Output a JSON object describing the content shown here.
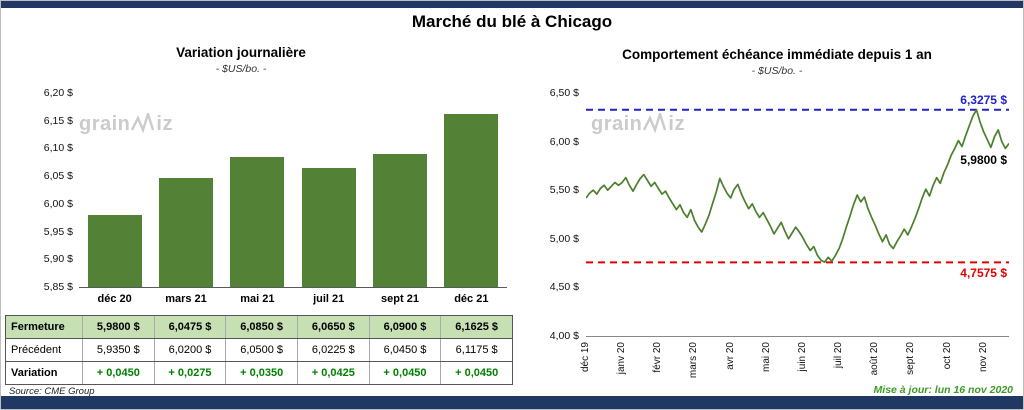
{
  "page": {
    "title": "Marché du blé à Chicago",
    "source": "Source: CME Group",
    "updated": "Mise à jour: lun 16 nov 2020"
  },
  "watermark": {
    "pre": "grain",
    "post": "iz"
  },
  "colors": {
    "navy": "#1F3864",
    "bar_green": "#538135",
    "row_green": "#C6E0B4",
    "variation_green": "#008000",
    "line_green": "#4A7F2C",
    "ref_blue": "#2222CC",
    "ref_red": "#E00000",
    "updated_green": "#3C9B28",
    "watermark_gray": "#CBCBCB"
  },
  "chart_data": [
    {
      "type": "bar",
      "title": "Variation journalière",
      "subtitle": "- $US/bo. -",
      "categories": [
        "déc 20",
        "mars 21",
        "mai 21",
        "juil 21",
        "sept 21",
        "déc 21"
      ],
      "values": [
        5.98,
        6.0475,
        6.085,
        6.065,
        6.09,
        6.1625
      ],
      "ylim": [
        5.85,
        6.2
      ],
      "y_ticks": [
        "6,20 $",
        "6,15 $",
        "6,10 $",
        "6,05 $",
        "6,00 $",
        "5,95 $",
        "5,90 $",
        "5,85 $"
      ],
      "xlabel": "",
      "ylabel": "$US/bo.",
      "grid": false,
      "legend": "none"
    },
    {
      "type": "line",
      "title": "Comportement échéance immédiate depuis 1 an",
      "subtitle": "- $US/bo. -",
      "x_labels": [
        "déc 19",
        "janv 20",
        "févr 20",
        "mars 20",
        "avr 20",
        "mai 20",
        "juin 20",
        "juil 20",
        "août 20",
        "sept 20",
        "oct 20",
        "nov 20"
      ],
      "y_ticks": [
        "6,50 $",
        "6,00 $",
        "5,50 $",
        "5,00 $",
        "4,50 $",
        "4,00 $"
      ],
      "ylim": [
        4.0,
        6.5
      ],
      "grid": false,
      "legend": "none",
      "series": [
        {
          "name": "échéance immédiate",
          "values": [
            5.42,
            5.47,
            5.5,
            5.46,
            5.52,
            5.55,
            5.5,
            5.54,
            5.58,
            5.55,
            5.58,
            5.63,
            5.55,
            5.49,
            5.56,
            5.62,
            5.66,
            5.6,
            5.54,
            5.58,
            5.52,
            5.46,
            5.49,
            5.42,
            5.36,
            5.3,
            5.35,
            5.27,
            5.22,
            5.3,
            5.19,
            5.12,
            5.07,
            5.15,
            5.24,
            5.36,
            5.48,
            5.62,
            5.54,
            5.47,
            5.42,
            5.51,
            5.56,
            5.46,
            5.38,
            5.31,
            5.36,
            5.28,
            5.22,
            5.27,
            5.2,
            5.13,
            5.05,
            5.11,
            5.17,
            5.08,
            5.0,
            5.06,
            5.12,
            5.07,
            5.01,
            4.94,
            4.88,
            4.92,
            4.83,
            4.78,
            4.76,
            4.81,
            4.77,
            4.83,
            4.9,
            5.0,
            5.12,
            5.23,
            5.35,
            5.45,
            5.38,
            5.43,
            5.31,
            5.22,
            5.14,
            5.05,
            4.97,
            5.04,
            4.94,
            4.9,
            4.97,
            5.03,
            5.1,
            5.04,
            5.12,
            5.21,
            5.31,
            5.42,
            5.51,
            5.44,
            5.55,
            5.63,
            5.57,
            5.68,
            5.76,
            5.86,
            5.93,
            6.01,
            5.95,
            6.06,
            6.16,
            6.26,
            6.3275,
            6.2,
            6.1,
            6.02,
            5.94,
            6.05,
            6.12,
            6.0,
            5.93,
            5.98
          ]
        }
      ],
      "ref_lines": [
        {
          "value": 6.3275,
          "label": "6,3275 $",
          "color": "#2222CC"
        },
        {
          "value": 4.7575,
          "label": "4,7575 $",
          "color": "#E00000"
        }
      ],
      "end_label": {
        "value": 5.98,
        "label": "5,9800 $",
        "color": "#000000"
      }
    }
  ],
  "table": {
    "rows": [
      {
        "label": "Fermeture",
        "style": "highlight",
        "values": [
          "5,9800 $",
          "6,0475 $",
          "6,0850 $",
          "6,0650 $",
          "6,0900 $",
          "6,1625 $"
        ]
      },
      {
        "label": "Précédent",
        "style": "normal",
        "values": [
          "5,9350 $",
          "6,0200 $",
          "6,0500 $",
          "6,0225 $",
          "6,0450 $",
          "6,1175 $"
        ]
      },
      {
        "label": "Variation",
        "style": "variation",
        "values": [
          "+ 0,0450",
          "+ 0,0275",
          "+ 0,0350",
          "+ 0,0425",
          "+ 0,0450",
          "+ 0,0450"
        ]
      }
    ]
  }
}
